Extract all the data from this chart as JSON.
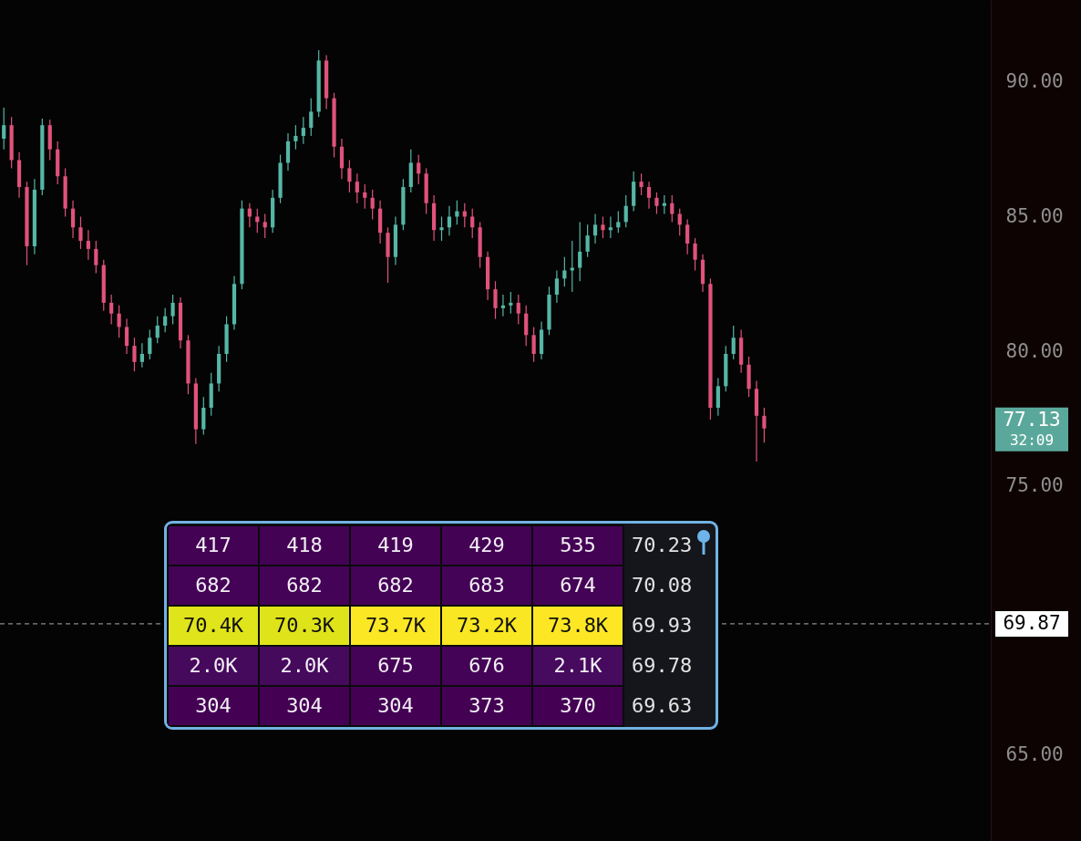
{
  "chart_data": [
    {
      "type": "candlestick",
      "categories": [
        null,
        null,
        null,
        null,
        null,
        null,
        null,
        null,
        null,
        null,
        null,
        null,
        null,
        null,
        null,
        null,
        null,
        null,
        null,
        null,
        null,
        null,
        null,
        null,
        null,
        null,
        null,
        null,
        null,
        null,
        null,
        null,
        null,
        null,
        null,
        null,
        null,
        null,
        null,
        null,
        null,
        null,
        null,
        null,
        null,
        null,
        null,
        null,
        null,
        null,
        null,
        null,
        null,
        null,
        null,
        null,
        null,
        null,
        null,
        null,
        null,
        null,
        null,
        null,
        null,
        null,
        null,
        null,
        null,
        null,
        null,
        null,
        null,
        null,
        null,
        null,
        null,
        null,
        null,
        null,
        null,
        null,
        null,
        null,
        null,
        null,
        null,
        null,
        null,
        null,
        null,
        null,
        null,
        null,
        null,
        null,
        null,
        null,
        null,
        null,
        null,
        null,
        null,
        null,
        null,
        null,
        null,
        null,
        null,
        null,
        null,
        null,
        null,
        null,
        null,
        null,
        null,
        null,
        null,
        null,
        null,
        null,
        null,
        null,
        null,
        null,
        null,
        null,
        null
      ],
      "ohlc": [
        [
          87.9,
          89.05,
          87.5,
          88.4
        ],
        [
          88.4,
          88.7,
          86.8,
          87.1
        ],
        [
          87.1,
          87.4,
          85.7,
          86.1
        ],
        [
          86.1,
          86.3,
          83.2,
          83.9
        ],
        [
          83.9,
          86.4,
          83.6,
          86.0
        ],
        [
          86.0,
          88.64,
          85.8,
          88.4
        ],
        [
          88.4,
          88.6,
          87.1,
          87.5
        ],
        [
          87.5,
          87.8,
          86.2,
          86.5
        ],
        [
          86.5,
          86.8,
          85.0,
          85.3
        ],
        [
          85.3,
          85.6,
          84.2,
          84.6
        ],
        [
          84.6,
          85.0,
          83.8,
          84.1
        ],
        [
          84.1,
          84.5,
          83.4,
          83.8
        ],
        [
          83.8,
          84.1,
          82.9,
          83.2
        ],
        [
          83.2,
          83.4,
          81.5,
          81.8
        ],
        [
          81.8,
          82.1,
          81.0,
          81.4
        ],
        [
          81.4,
          81.7,
          80.5,
          80.9
        ],
        [
          80.9,
          81.2,
          79.9,
          80.2
        ],
        [
          80.2,
          80.5,
          79.25,
          79.6
        ],
        [
          79.6,
          80.3,
          79.4,
          79.9
        ],
        [
          79.9,
          80.8,
          79.7,
          80.5
        ],
        [
          80.5,
          81.3,
          80.3,
          80.95
        ],
        [
          80.95,
          81.6,
          80.7,
          81.3
        ],
        [
          81.3,
          82.1,
          81.0,
          81.8
        ],
        [
          81.8,
          82.0,
          80.1,
          80.4
        ],
        [
          80.4,
          80.6,
          78.4,
          78.8
        ],
        [
          78.8,
          79.0,
          76.55,
          77.1
        ],
        [
          77.1,
          78.3,
          76.9,
          77.9
        ],
        [
          77.9,
          79.2,
          77.6,
          78.8
        ],
        [
          78.8,
          80.2,
          78.5,
          79.9
        ],
        [
          79.9,
          81.3,
          79.6,
          81.0
        ],
        [
          81.0,
          82.8,
          80.8,
          82.5
        ],
        [
          82.5,
          85.6,
          82.3,
          85.3
        ],
        [
          85.3,
          85.5,
          84.6,
          85.0
        ],
        [
          85.0,
          85.3,
          84.4,
          84.8
        ],
        [
          84.8,
          85.1,
          84.2,
          84.6
        ],
        [
          84.6,
          86.0,
          84.4,
          85.7
        ],
        [
          85.7,
          87.3,
          85.5,
          87.0
        ],
        [
          87.0,
          88.1,
          86.7,
          87.8
        ],
        [
          87.8,
          88.4,
          87.5,
          88.0
        ],
        [
          88.0,
          88.7,
          87.7,
          88.3
        ],
        [
          88.3,
          89.4,
          88.0,
          88.9
        ],
        [
          88.9,
          91.19,
          88.7,
          90.8
        ],
        [
          90.8,
          91.0,
          89.0,
          89.4
        ],
        [
          89.4,
          89.6,
          87.2,
          87.6
        ],
        [
          87.6,
          87.9,
          86.4,
          86.8
        ],
        [
          86.8,
          87.1,
          85.9,
          86.3
        ],
        [
          86.3,
          86.6,
          85.5,
          85.9
        ],
        [
          85.9,
          86.2,
          85.3,
          85.7
        ],
        [
          85.7,
          86.0,
          84.9,
          85.3
        ],
        [
          85.3,
          85.6,
          84.0,
          84.4
        ],
        [
          84.4,
          84.6,
          82.54,
          83.5
        ],
        [
          83.5,
          85.0,
          83.2,
          84.7
        ],
        [
          84.7,
          86.4,
          84.5,
          86.1
        ],
        [
          86.1,
          87.5,
          85.9,
          87.0
        ],
        [
          87.0,
          87.3,
          86.2,
          86.6
        ],
        [
          86.6,
          86.8,
          85.1,
          85.5
        ],
        [
          85.5,
          85.8,
          84.1,
          84.5
        ],
        [
          84.5,
          85.0,
          84.1,
          84.6
        ],
        [
          84.6,
          85.4,
          84.3,
          85.0
        ],
        [
          85.0,
          85.6,
          84.7,
          85.2
        ],
        [
          85.2,
          85.5,
          84.6,
          85.0
        ],
        [
          85.0,
          85.3,
          84.2,
          84.6
        ],
        [
          84.6,
          84.8,
          83.1,
          83.5
        ],
        [
          83.5,
          83.7,
          81.9,
          82.3
        ],
        [
          82.3,
          82.6,
          81.2,
          81.6
        ],
        [
          81.6,
          82.1,
          81.3,
          81.7
        ],
        [
          81.7,
          82.2,
          81.4,
          81.8
        ],
        [
          81.8,
          82.1,
          81.0,
          81.4
        ],
        [
          81.4,
          81.7,
          80.2,
          80.6
        ],
        [
          80.6,
          80.9,
          79.6,
          79.9
        ],
        [
          79.9,
          81.1,
          79.7,
          80.8
        ],
        [
          80.8,
          82.4,
          80.6,
          82.1
        ],
        [
          82.1,
          83.0,
          81.8,
          82.7
        ],
        [
          82.7,
          83.5,
          82.4,
          83.0
        ],
        [
          83.0,
          84.1,
          82.2,
          83.1
        ],
        [
          83.1,
          84.8,
          82.6,
          83.7
        ],
        [
          83.7,
          84.7,
          83.5,
          84.3
        ],
        [
          84.3,
          85.1,
          84.0,
          84.7
        ],
        [
          84.7,
          85.0,
          84.2,
          84.5
        ],
        [
          84.5,
          85.0,
          84.2,
          84.6
        ],
        [
          84.6,
          85.2,
          84.4,
          84.8
        ],
        [
          84.8,
          85.8,
          84.6,
          85.4
        ],
        [
          85.4,
          86.68,
          85.2,
          86.3
        ],
        [
          86.3,
          86.6,
          85.8,
          86.1
        ],
        [
          86.1,
          86.3,
          85.3,
          85.7
        ],
        [
          85.7,
          85.9,
          85.1,
          85.4
        ],
        [
          85.4,
          85.8,
          85.1,
          85.5
        ],
        [
          85.5,
          85.8,
          84.8,
          85.1
        ],
        [
          85.1,
          85.3,
          84.3,
          84.7
        ],
        [
          84.7,
          84.9,
          83.6,
          84.0
        ],
        [
          84.0,
          84.2,
          83.0,
          83.4
        ],
        [
          83.4,
          83.6,
          82.2,
          82.5
        ],
        [
          82.5,
          82.7,
          77.46,
          77.9
        ],
        [
          77.9,
          79.0,
          77.6,
          78.7
        ],
        [
          78.7,
          80.2,
          78.5,
          79.9
        ],
        [
          79.9,
          80.95,
          79.7,
          80.5
        ],
        [
          80.5,
          80.8,
          79.2,
          79.5
        ],
        [
          79.5,
          79.8,
          78.3,
          78.6
        ],
        [
          78.6,
          78.9,
          75.9,
          77.6
        ],
        [
          77.6,
          77.9,
          76.6,
          77.13
        ],
        null,
        null,
        null,
        null,
        null,
        null,
        null,
        null,
        null,
        null,
        null,
        null,
        null,
        null,
        null,
        null,
        null,
        null,
        null,
        null,
        null,
        null,
        null,
        null,
        null,
        null,
        null,
        null,
        null
      ],
      "colors": [
        "#56b6a6",
        "#e0527c",
        "#e0527c",
        "#e0527c",
        "#56b6a6",
        "#56b6a6",
        "#e0527c",
        "#e0527c",
        "#e0527c",
        "#e0527c",
        "#e0527c",
        "#e0527c",
        "#e0527c",
        "#e0527c",
        "#e0527c",
        "#e0527c",
        "#e0527c",
        "#e0527c",
        "#56b6a6",
        "#56b6a6",
        "#56b6a6",
        "#56b6a6",
        "#56b6a6",
        "#e0527c",
        "#e0527c",
        "#e0527c",
        "#56b6a6",
        "#56b6a6",
        "#56b6a6",
        "#56b6a6",
        "#56b6a6",
        "#56b6a6",
        "#e0527c",
        "#e0527c",
        "#e0527c",
        "#56b6a6",
        "#56b6a6",
        "#56b6a6",
        "#56b6a6",
        "#56b6a6",
        "#56b6a6",
        "#56b6a6",
        "#e0527c",
        "#e0527c",
        "#e0527c",
        "#e0527c",
        "#e0527c",
        "#e0527c",
        "#e0527c",
        "#e0527c",
        "#e0527c",
        "#56b6a6",
        "#56b6a6",
        "#56b6a6",
        "#e0527c",
        "#e0527c",
        "#e0527c",
        "#56b6a6",
        "#56b6a6",
        "#56b6a6",
        "#e0527c",
        "#e0527c",
        "#e0527c",
        "#e0527c",
        "#e0527c",
        "#56b6a6",
        "#56b6a6",
        "#e0527c",
        "#e0527c",
        "#e0527c",
        "#56b6a6",
        "#56b6a6",
        "#56b6a6",
        "#56b6a6",
        "#56b6a6",
        "#56b6a6",
        "#56b6a6",
        "#56b6a6",
        "#e0527c",
        "#56b6a6",
        "#56b6a6",
        "#56b6a6",
        "#56b6a6",
        "#e0527c",
        "#e0527c",
        "#e0527c",
        "#56b6a6",
        "#e0527c",
        "#e0527c",
        "#e0527c",
        "#e0527c",
        "#e0527c",
        "#e0527c",
        "#56b6a6",
        "#56b6a6",
        "#56b6a6",
        "#e0527c",
        "#e0527c",
        "#e0527c",
        "#e0527c",
        null,
        null,
        null,
        null,
        null,
        null,
        null,
        null,
        null,
        null,
        null,
        null,
        null,
        null,
        null,
        null,
        null,
        null,
        null,
        null,
        null,
        null,
        null,
        null,
        null,
        null,
        null,
        null,
        null
      ],
      "ylim": [
        61.8,
        93.05
      ],
      "yticks": [
        {
          "value": 90,
          "label": "90.00"
        },
        {
          "value": 85,
          "label": "85.00"
        },
        {
          "value": 80,
          "label": "80.00"
        },
        {
          "value": 75,
          "label": "75.00"
        },
        {
          "value": 65,
          "label": "65.00"
        }
      ],
      "tick_labels": "y",
      "ref_lines": [
        {
          "axis": "y",
          "value": 69.87,
          "label": "69.87",
          "color": "#8a8a8a",
          "line_style": "dashed"
        }
      ],
      "annotations": [
        "77.13",
        "32:09"
      ]
    },
    {
      "type": "heatmap",
      "categories": [
        null,
        null,
        null,
        null,
        null
      ],
      "y_categories": [
        null,
        null,
        null,
        null,
        null
      ],
      "y2_categories": [
        "70.23",
        "70.08",
        "69.93",
        "69.78",
        "69.63"
      ],
      "cells": [
        [
          417,
          418,
          419,
          429,
          535
        ],
        [
          682,
          682,
          682,
          683,
          674
        ],
        [
          70400,
          70300,
          73700,
          73200,
          73800
        ],
        [
          2000,
          2000,
          675,
          676,
          2100
        ],
        [
          304,
          304,
          304,
          373,
          370
        ]
      ],
      "cell_labels": [
        [
          "417",
          "418",
          "419",
          "429",
          "535"
        ],
        [
          "682",
          "682",
          "682",
          "683",
          "674"
        ],
        [
          "70.4K",
          "70.3K",
          "73.7K",
          "73.2K",
          "73.8K"
        ],
        [
          "2.0K",
          "2.0K",
          "675",
          "676",
          "2.1K"
        ],
        [
          "304",
          "304",
          "304",
          "373",
          "370"
        ]
      ]
    }
  ]
}
